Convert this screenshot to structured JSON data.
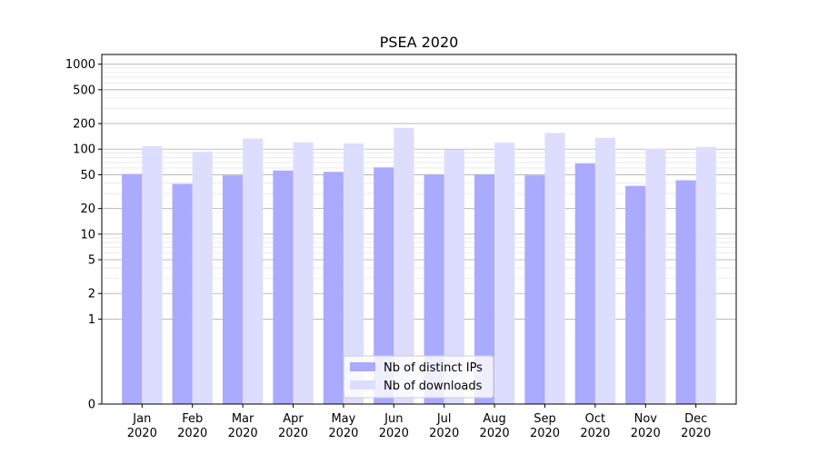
{
  "chart_data": {
    "type": "bar",
    "title": "PSEA 2020",
    "xlabel": "",
    "ylabel": "",
    "y_scale": "symlog",
    "ylim": [
      0,
      1300
    ],
    "y_ticks": [
      0,
      1,
      2,
      5,
      10,
      20,
      50,
      100,
      200,
      500,
      1000
    ],
    "grid": true,
    "legend_position": "bottom-center",
    "categories": [
      [
        "Jan",
        "2020"
      ],
      [
        "Feb",
        "2020"
      ],
      [
        "Mar",
        "2020"
      ],
      [
        "Apr",
        "2020"
      ],
      [
        "May",
        "2020"
      ],
      [
        "Jun",
        "2020"
      ],
      [
        "Jul",
        "2020"
      ],
      [
        "Aug",
        "2020"
      ],
      [
        "Sep",
        "2020"
      ],
      [
        "Oct",
        "2020"
      ],
      [
        "Nov",
        "2020"
      ],
      [
        "Dec",
        "2020"
      ]
    ],
    "series": [
      {
        "name": "Nb of distinct IPs",
        "color": "#aaaaff",
        "values": [
          51,
          39,
          49,
          56,
          54,
          61,
          50,
          50,
          49,
          68,
          37,
          43
        ]
      },
      {
        "name": "Nb of downloads",
        "color": "#ddddff",
        "values": [
          108,
          93,
          133,
          120,
          117,
          178,
          99,
          119,
          155,
          136,
          101,
          106
        ]
      }
    ]
  }
}
